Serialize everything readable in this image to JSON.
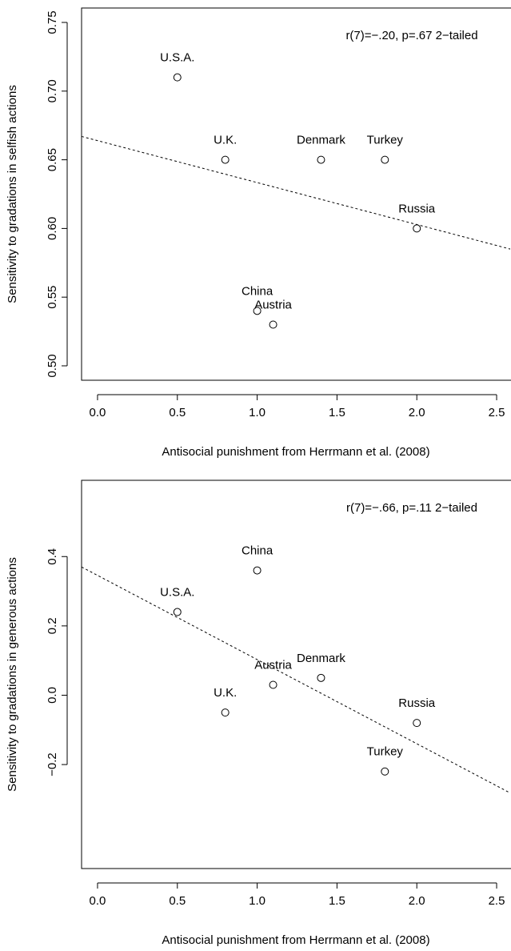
{
  "chart_data": [
    {
      "type": "scatter",
      "x": [
        0.5,
        0.8,
        1.4,
        1.8,
        2.0,
        1.0,
        1.1
      ],
      "values": [
        0.71,
        0.65,
        0.65,
        0.65,
        0.6,
        0.54,
        0.53
      ],
      "labels": [
        "U.S.A.",
        "U.K.",
        "Denmark",
        "Turkey",
        "Russia",
        "China",
        "Austria"
      ],
      "annotation": "r(7)=−.20, p=.67 2−tailed",
      "x_label": "Antisocial punishment from Herrmann et al. (2008)",
      "y_label": "Sensitivity to gradations in selfish actions",
      "trend_line": {
        "x": [
          -0.1,
          2.585
        ],
        "y": [
          0.667,
          0.585
        ]
      },
      "xlim": [
        -0.1,
        2.585
      ],
      "ylim": [
        0.4895,
        0.7605
      ],
      "xticks": [
        {
          "value": 0,
          "label": "0.0"
        },
        0.5,
        {
          "value": 1,
          "label": "1.0"
        },
        1.5,
        {
          "value": 2,
          "label": "2.0"
        },
        2.5
      ],
      "yticks": [
        {
          "value": 0.5,
          "label": "0.50"
        },
        {
          "value": 0.55,
          "label": "0.55"
        },
        {
          "value": 0.6,
          "label": "0.60"
        },
        {
          "value": 0.65,
          "label": "0.65"
        },
        {
          "value": 0.7,
          "label": "0.70"
        },
        {
          "value": 0.75,
          "label": "0.75"
        }
      ]
    },
    {
      "type": "scatter",
      "x": [
        0.5,
        1.0,
        1.1,
        1.4,
        0.8,
        2.0,
        1.8
      ],
      "values": [
        0.24,
        0.36,
        0.03,
        0.05,
        -0.05,
        -0.08,
        -0.22
      ],
      "labels": [
        "U.S.A.",
        "China",
        "Austria",
        "Denmark",
        "U.K.",
        "Russia",
        "Turkey"
      ],
      "annotation": "r(7)=−.66, p=.11 2−tailed",
      "x_label": "Antisocial punishment from Herrmann et al. (2008)",
      "y_label": "Sensitivity to gradations in generous actions",
      "trend_line": {
        "x": [
          -0.1,
          2.585
        ],
        "y": [
          0.37,
          -0.282
        ]
      },
      "xlim": [
        -0.1,
        2.585
      ],
      "ylim": [
        -0.5,
        0.62
      ],
      "xticks": [
        {
          "value": 0,
          "label": "0.0"
        },
        0.5,
        {
          "value": 1,
          "label": "1.0"
        },
        1.5,
        {
          "value": 2,
          "label": "2.0"
        },
        2.5
      ],
      "yticks": [
        {
          "value": -0.2,
          "label": "−0.2"
        },
        {
          "value": 0,
          "label": "0.0"
        },
        0.2,
        0.4
      ]
    }
  ]
}
